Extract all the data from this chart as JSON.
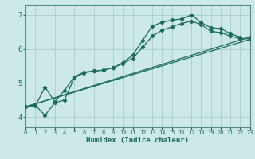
{
  "background_color": "#cce8e8",
  "grid_color": "#aacccc",
  "line_color": "#1a6b5a",
  "xlabel": "Humidex (Indice chaleur)",
  "xlim": [
    0,
    23
  ],
  "ylim": [
    3.7,
    7.3
  ],
  "yticks": [
    4,
    5,
    6,
    7
  ],
  "xticks": [
    0,
    1,
    2,
    3,
    4,
    5,
    6,
    7,
    8,
    9,
    10,
    11,
    12,
    13,
    14,
    15,
    16,
    17,
    18,
    19,
    20,
    21,
    22,
    23
  ],
  "curve1_x": [
    0,
    1,
    2,
    3,
    4,
    5,
    6,
    7,
    8,
    9,
    10,
    11,
    12,
    13,
    14,
    15,
    16,
    17,
    18,
    19,
    20,
    21,
    22,
    23
  ],
  "curve1_y": [
    4.3,
    4.35,
    4.05,
    4.42,
    4.5,
    5.15,
    5.3,
    5.35,
    5.38,
    5.45,
    5.6,
    5.82,
    6.25,
    6.68,
    6.78,
    6.85,
    6.88,
    7.0,
    6.78,
    6.62,
    6.6,
    6.45,
    6.35,
    6.35
  ],
  "curve2_x": [
    0,
    1,
    2,
    3,
    4,
    5,
    6,
    7,
    8,
    9,
    10,
    11,
    12,
    13,
    14,
    15,
    16,
    17,
    18,
    19,
    20,
    21,
    22,
    23
  ],
  "curve2_y": [
    4.3,
    4.32,
    4.88,
    4.45,
    4.78,
    5.18,
    5.32,
    5.35,
    5.38,
    5.45,
    5.58,
    5.72,
    6.05,
    6.38,
    6.55,
    6.65,
    6.75,
    6.82,
    6.72,
    6.52,
    6.48,
    6.38,
    6.3,
    6.3
  ],
  "line1_x": [
    0,
    23
  ],
  "line1_y": [
    4.3,
    6.35
  ],
  "line2_x": [
    0,
    23
  ],
  "line2_y": [
    4.3,
    6.28
  ]
}
